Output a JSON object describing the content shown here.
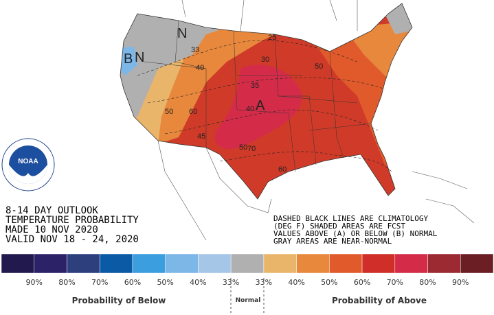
{
  "header": {
    "lines": [
      "8-14 DAY OUTLOOK",
      "TEMPERATURE PROBABILITY",
      "MADE  10 NOV 2020",
      "VALID  NOV 18 - 24, 2020"
    ]
  },
  "notes": [
    "DASHED BLACK LINES ARE CLIMATOLOGY",
    "(DEG F) SHADED AREAS ARE FCST",
    "VALUES ABOVE (A) OR BELOW (B) NORMAL",
    "GRAY AREAS ARE NEAR-NORMAL"
  ],
  "map_labels": [
    "N",
    "B",
    "N",
    "A",
    "25",
    "33",
    "30",
    "40",
    "35",
    "40",
    "50",
    "50",
    "60",
    "45",
    "50",
    "70",
    "60"
  ],
  "legend": {
    "colors": [
      "#221a4e",
      "#2b2268",
      "#2e3f7e",
      "#0b5aa5",
      "#3b9ede",
      "#7db7e8",
      "#a6c6e7",
      "#b0b0b0",
      "#e9b56b",
      "#e8883d",
      "#e05a2b",
      "#cf2f28",
      "#d42c48",
      "#9c2a33",
      "#6b1f25"
    ],
    "ticks": [
      "90%",
      "80%",
      "70%",
      "60%",
      "50%",
      "40%",
      "33%",
      "33%",
      "40%",
      "50%",
      "60%",
      "70%",
      "80%",
      "90%"
    ],
    "below_label": "Probability of Below",
    "normal_label": "Normal",
    "above_label": "Probability of Above"
  }
}
